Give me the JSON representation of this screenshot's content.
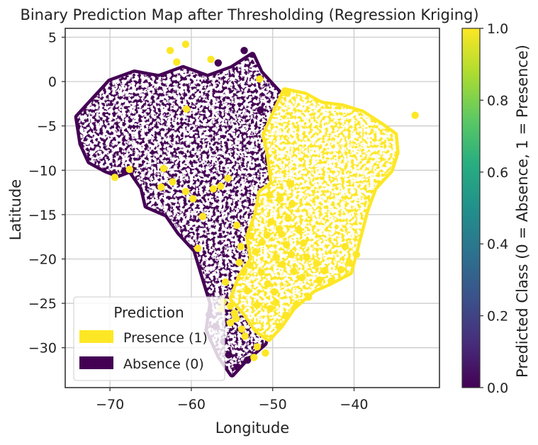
{
  "chart_data": {
    "type": "scatter",
    "title": "Binary Prediction Map after Thresholding (Regression Kriging)",
    "xlabel": "Longitude",
    "ylabel": "Latitude",
    "xlim": [
      -75.5,
      -29.5
    ],
    "ylim": [
      -34.5,
      6
    ],
    "xticks": [
      -70,
      -60,
      -50,
      -40
    ],
    "xtick_labels": [
      "−70",
      "−60",
      "−50",
      "−40"
    ],
    "yticks": [
      5,
      0,
      -5,
      -10,
      -15,
      -20,
      -25,
      -30
    ],
    "ytick_labels": [
      "5",
      "0",
      "−5",
      "−10",
      "−15",
      "−20",
      "−25",
      "−30"
    ],
    "grid": true,
    "colorbar": {
      "label": "Predicted Class (0 = Absence, 1 = Presence)",
      "range": [
        0.0,
        1.0
      ],
      "ticks": [
        "0.0",
        "0.2",
        "0.4",
        "0.6",
        "0.8",
        "1.0"
      ],
      "colormap": "viridis"
    },
    "legend": {
      "title": "Prediction",
      "placement": "lower-left",
      "entries": [
        {
          "label": "Presence (1)",
          "color": "#fde725"
        },
        {
          "label": "Absence (0)",
          "color": "#440154"
        }
      ]
    },
    "series": [
      {
        "name": "Absence (0)",
        "color": "#440154",
        "polygon": [
          [
            -74,
            -4
          ],
          [
            -72,
            -2
          ],
          [
            -70,
            0
          ],
          [
            -67,
            1
          ],
          [
            -64,
            0.5
          ],
          [
            -61,
            1.5
          ],
          [
            -58,
            0.5
          ],
          [
            -55,
            1.5
          ],
          [
            -52.5,
            3
          ],
          [
            -51.5,
            1
          ],
          [
            -49,
            -1.5
          ],
          [
            -48,
            -3
          ],
          [
            -50.5,
            -5
          ],
          [
            -51,
            -9
          ],
          [
            -49,
            -12
          ],
          [
            -47,
            -15
          ],
          [
            -46.5,
            -19
          ],
          [
            -48.5,
            -23
          ],
          [
            -50,
            -26
          ],
          [
            -51,
            -29.5
          ],
          [
            -53.5,
            -31.5
          ],
          [
            -55,
            -33
          ],
          [
            -56.5,
            -31
          ],
          [
            -58,
            -28
          ],
          [
            -57.5,
            -25
          ],
          [
            -58.5,
            -22
          ],
          [
            -59.5,
            -19
          ],
          [
            -61.5,
            -17
          ],
          [
            -63,
            -15
          ],
          [
            -65.5,
            -14
          ],
          [
            -66,
            -12
          ],
          [
            -67.5,
            -10
          ],
          [
            -69,
            -10.5
          ],
          [
            -70.5,
            -10
          ],
          [
            -72.5,
            -9
          ],
          [
            -73.5,
            -7
          ]
        ],
        "points": [
          [
            -69.5,
            -10.4
          ],
          [
            -68.2,
            -10.1
          ],
          [
            -57.8,
            -26.3
          ],
          [
            -57,
            -27.6
          ],
          [
            -56,
            -29.3
          ],
          [
            -55.4,
            -30.8
          ],
          [
            -54.3,
            -32.2
          ],
          [
            -53.1,
            -31.4
          ],
          [
            -51.5,
            -3.2
          ],
          [
            -53.5,
            3.5
          ],
          [
            -56.7,
            2.1
          ]
        ]
      },
      {
        "name": "Presence (1)",
        "color": "#fde725",
        "polygon": [
          [
            -48.5,
            -1
          ],
          [
            -46,
            -1.5
          ],
          [
            -44,
            -2.5
          ],
          [
            -41.5,
            -2.8
          ],
          [
            -39,
            -3.5
          ],
          [
            -36.5,
            -5
          ],
          [
            -35,
            -6
          ],
          [
            -34.8,
            -8
          ],
          [
            -35.5,
            -10
          ],
          [
            -37.5,
            -12
          ],
          [
            -38.5,
            -14.5
          ],
          [
            -39.5,
            -18
          ],
          [
            -40.5,
            -21.5
          ],
          [
            -43,
            -22.7
          ],
          [
            -45,
            -23.5
          ],
          [
            -47.5,
            -25.5
          ],
          [
            -49,
            -27.5
          ],
          [
            -50.5,
            -29
          ],
          [
            -52,
            -28
          ],
          [
            -53.5,
            -26
          ],
          [
            -55,
            -24.5
          ],
          [
            -54,
            -22
          ],
          [
            -52.5,
            -20
          ],
          [
            -53,
            -17.5
          ],
          [
            -52,
            -15
          ],
          [
            -51.5,
            -12.5
          ],
          [
            -50,
            -11.5
          ],
          [
            -50.5,
            -8
          ],
          [
            -51,
            -6
          ],
          [
            -49.5,
            -3
          ]
        ],
        "points": [
          [
            -62.6,
            3.5
          ],
          [
            -60.7,
            4.2
          ],
          [
            -61.8,
            2.2
          ],
          [
            -57.6,
            2.5
          ],
          [
            -51.6,
            0.3
          ],
          [
            -48.2,
            -1.3
          ],
          [
            -60.6,
            -3.1
          ],
          [
            -67.6,
            -9.9
          ],
          [
            -69.4,
            -10.8
          ],
          [
            -32.5,
            -3.8
          ],
          [
            -63.4,
            -9.8
          ],
          [
            -62.3,
            -11.3
          ],
          [
            -63.7,
            -11.9
          ],
          [
            -60.7,
            -12.4
          ],
          [
            -59.8,
            -13.2
          ],
          [
            -57.3,
            -12.1
          ],
          [
            -56.4,
            -11.8
          ],
          [
            -55.5,
            -10.9
          ],
          [
            -59.2,
            -18.8
          ],
          [
            -58.6,
            -15.2
          ],
          [
            -54.4,
            -16.2
          ],
          [
            -53.9,
            -18.6
          ],
          [
            -52.7,
            -17.4
          ],
          [
            -55.8,
            -22.6
          ],
          [
            -55.2,
            -25.3
          ],
          [
            -54.5,
            -26.7
          ],
          [
            -56.1,
            -24.8
          ],
          [
            -55.2,
            -27.2
          ],
          [
            -53.8,
            -27.9
          ],
          [
            -53.4,
            -28.7
          ],
          [
            -51.9,
            -29.9
          ],
          [
            -50.9,
            -30.6
          ],
          [
            -52.3,
            -31.1
          ],
          [
            -54.7,
            -26.1
          ],
          [
            -56.3,
            -25.6
          ],
          [
            -53.1,
            -23.6
          ],
          [
            -47.4,
            -21.4
          ],
          [
            -45.8,
            -19.8
          ],
          [
            -44.6,
            -20.5
          ],
          [
            -43.6,
            -21.3
          ],
          [
            -48.3,
            -18.4
          ],
          [
            -49.6,
            -19.8
          ],
          [
            -48.9,
            -17.2
          ],
          [
            -50.2,
            -15.8
          ],
          [
            -47.6,
            -13.8
          ],
          [
            -49.1,
            -13.2
          ],
          [
            -47.8,
            -11.6
          ],
          [
            -50.4,
            -12.8
          ],
          [
            -44.3,
            -22.4
          ],
          [
            -42.8,
            -22.5
          ],
          [
            -41.6,
            -21.2
          ],
          [
            -40.6,
            -20.4
          ],
          [
            -39.7,
            -19.5
          ],
          [
            -41.1,
            -18.6
          ],
          [
            -45.6,
            -24.3
          ],
          [
            -47.1,
            -25.1
          ],
          [
            -48.4,
            -26.4
          ],
          [
            -49.2,
            -27.6
          ],
          [
            -46.4,
            -22.1
          ],
          [
            -52.8,
            -20.7
          ],
          [
            -51.4,
            -21.5
          ],
          [
            -50.6,
            -22.8
          ],
          [
            -49.8,
            -23.7
          ],
          [
            -51.9,
            -25.2
          ],
          [
            -50.3,
            -25.6
          ],
          [
            -49.6,
            -24.9
          ],
          [
            -53.6,
            -21.5
          ],
          [
            -54.1,
            -20.4
          ],
          [
            -52.1,
            -19.2
          ],
          [
            -51.3,
            -18.1
          ],
          [
            -50.7,
            -17.3
          ],
          [
            -49.2,
            -16.6
          ],
          [
            -48.1,
            -15.4
          ],
          [
            -46.8,
            -16.7
          ],
          [
            -46.2,
            -18.2
          ],
          [
            -47.7,
            -19.5
          ],
          [
            -48.8,
            -20.6
          ]
        ]
      }
    ]
  }
}
